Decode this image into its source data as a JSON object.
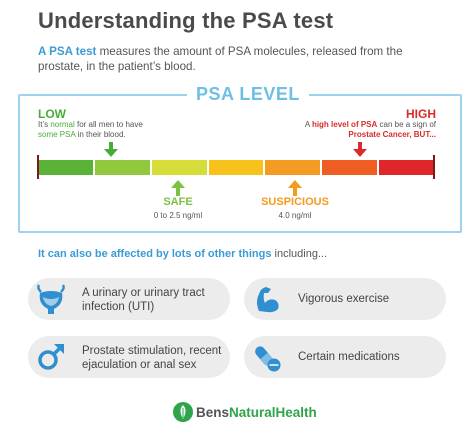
{
  "title": "Understanding the PSA test",
  "intro": {
    "highlight": "A PSA test",
    "rest": " measures the amount of PSA molecules, released from the prostate, in the patient’s blood."
  },
  "psa_panel": {
    "title": "PSA LEVEL",
    "low": {
      "label": "LOW",
      "desc_a": "It’s ",
      "desc_b": "normal",
      "desc_c": " for all men to have ",
      "desc_d": "some PSA",
      "desc_e": " in their blood."
    },
    "high": {
      "label": "HIGH",
      "desc_a": "A ",
      "desc_b": "high level of PSA",
      "desc_c": " can be a sign of ",
      "desc_d": "Prostate Cancer, BUT..."
    },
    "scale_colors": [
      "#5ab337",
      "#92c83e",
      "#d6dc3a",
      "#f7c219",
      "#f59a23",
      "#ef5d23",
      "#e0252b"
    ],
    "safe": {
      "label": "SAFE",
      "range": "0 to 2.5 ng/ml"
    },
    "suspicious": {
      "label": "SUSPICIOUS",
      "range": "4.0 ng/ml"
    }
  },
  "also": {
    "a": "It can also be affected by ",
    "b": "lots of other things",
    "c": " including..."
  },
  "factors": [
    {
      "text": "A urinary or urinary tract infection (UTI)",
      "icon": "bladder-icon"
    },
    {
      "text": "Vigorous exercise",
      "icon": "flexed-arm-icon"
    },
    {
      "text": "Prostate stimulation, recent ejaculation or anal sex",
      "icon": "male-symbol-icon"
    },
    {
      "text": "Certain medications",
      "icon": "pills-icon"
    }
  ],
  "brand": {
    "a": "Bens",
    "b": "NaturalHealth"
  },
  "colors": {
    "accent_blue": "#3a9bd5",
    "low_green": "#4bab3a",
    "high_red": "#d92b2b",
    "safe_green": "#7cc242",
    "suspicious_orange": "#f39b1b",
    "icon_blue": "#2f8fd0"
  }
}
